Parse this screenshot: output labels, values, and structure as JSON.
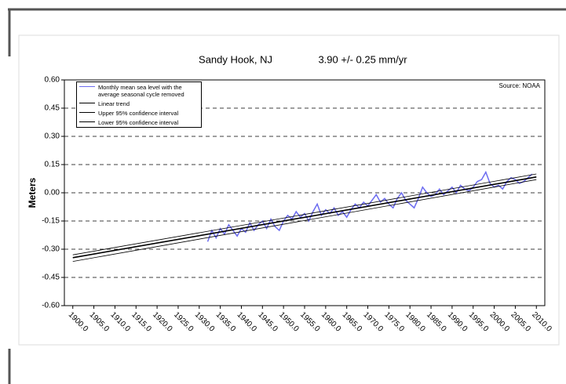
{
  "chart_data": {
    "type": "line",
    "title": "Sandy Hook, NJ",
    "subtitle": "3.90 +/- 0.25 mm/yr",
    "annotation": "Source: NOAA",
    "y_label": "Meters",
    "xlim": [
      1898,
      2012
    ],
    "ylim": [
      -0.6,
      0.6
    ],
    "xticks": [
      {
        "value": 1900,
        "label": "1900.0"
      },
      {
        "value": 1905,
        "label": "1905.0"
      },
      {
        "value": 1910,
        "label": "1910.0"
      },
      {
        "value": 1915,
        "label": "1915.0"
      },
      {
        "value": 1920,
        "label": "1920.0"
      },
      {
        "value": 1925,
        "label": "1925.0"
      },
      {
        "value": 1930,
        "label": "1930.0"
      },
      {
        "value": 1935,
        "label": "1935.0"
      },
      {
        "value": 1940,
        "label": "1940.0"
      },
      {
        "value": 1945,
        "label": "1945.0"
      },
      {
        "value": 1950,
        "label": "1950.0"
      },
      {
        "value": 1955,
        "label": "1955.0"
      },
      {
        "value": 1960,
        "label": "1960.0"
      },
      {
        "value": 1965,
        "label": "1965.0"
      },
      {
        "value": 1970,
        "label": "1970.0"
      },
      {
        "value": 1975,
        "label": "1975.0"
      },
      {
        "value": 1980,
        "label": "1980.0"
      },
      {
        "value": 1985,
        "label": "1985.0"
      },
      {
        "value": 1990,
        "label": "1990.0"
      },
      {
        "value": 1995,
        "label": "1995.0"
      },
      {
        "value": 2000,
        "label": "2000.0"
      },
      {
        "value": 2005,
        "label": "2005.0"
      },
      {
        "value": 2010,
        "label": "2010.0"
      }
    ],
    "yticks": [
      {
        "value": 0.6,
        "label": "0.60"
      },
      {
        "value": 0.45,
        "label": "0.45"
      },
      {
        "value": 0.3,
        "label": "0.30"
      },
      {
        "value": 0.15,
        "label": "0.15"
      },
      {
        "value": 0,
        "label": "0.00"
      },
      {
        "value": -0.15,
        "label": "-0.15"
      },
      {
        "value": -0.3,
        "label": "-0.30"
      },
      {
        "value": -0.45,
        "label": "-0.45"
      },
      {
        "value": -0.6,
        "label": "-0.60"
      }
    ],
    "grid": true,
    "legend": "top-left",
    "series": [
      {
        "name": "Monthly mean sea level with the average seasonal cycle removed",
        "color": "#6b6bf0",
        "width": 1.5,
        "x": [
          1932,
          1933,
          1934,
          1935,
          1936,
          1937,
          1938,
          1939,
          1940,
          1941,
          1942,
          1943,
          1944,
          1945,
          1946,
          1947,
          1948,
          1949,
          1950,
          1951,
          1952,
          1953,
          1954,
          1955,
          1956,
          1957,
          1958,
          1959,
          1960,
          1961,
          1962,
          1963,
          1964,
          1965,
          1966,
          1967,
          1968,
          1969,
          1970,
          1971,
          1972,
          1973,
          1974,
          1975,
          1976,
          1977,
          1978,
          1979,
          1980,
          1981,
          1982,
          1983,
          1984,
          1985,
          1986,
          1987,
          1988,
          1989,
          1990,
          1991,
          1992,
          1993,
          1994,
          1995,
          1996,
          1997,
          1998,
          1999,
          2000,
          2001,
          2002,
          2003,
          2004,
          2005,
          2006,
          2007,
          2008,
          2009
        ],
        "values": [
          -0.26,
          -0.2,
          -0.24,
          -0.19,
          -0.22,
          -0.17,
          -0.2,
          -0.23,
          -0.19,
          -0.21,
          -0.16,
          -0.2,
          -0.17,
          -0.15,
          -0.19,
          -0.14,
          -0.18,
          -0.2,
          -0.15,
          -0.12,
          -0.14,
          -0.1,
          -0.13,
          -0.11,
          -0.15,
          -0.1,
          -0.06,
          -0.12,
          -0.09,
          -0.11,
          -0.08,
          -0.12,
          -0.1,
          -0.13,
          -0.09,
          -0.06,
          -0.08,
          -0.05,
          -0.07,
          -0.04,
          -0.01,
          -0.05,
          -0.03,
          -0.06,
          -0.08,
          -0.03,
          0,
          -0.04,
          -0.06,
          -0.08,
          -0.03,
          0.03,
          0,
          -0.02,
          -0.01,
          0.02,
          -0.01,
          0.01,
          0.03,
          0,
          0.04,
          0.02,
          0.01,
          0.03,
          0.06,
          0.07,
          0.11,
          0.05,
          0.03,
          0.04,
          0.02,
          0.06,
          0.08,
          0.07,
          0.05,
          0.06,
          0.08,
          0.1
        ]
      },
      {
        "name": "Linear trend",
        "color": "#000000",
        "width": 1.6,
        "x": [
          1900,
          2010
        ],
        "values": [
          -0.345,
          0.084
        ]
      },
      {
        "name": "Upper 95% confidence interval",
        "color": "#000000",
        "width": 0.8,
        "x": [
          1900,
          2010
        ],
        "values": [
          -0.33,
          0.1
        ]
      },
      {
        "name": "Lower 95% confidence interval",
        "color": "#000000",
        "width": 0.8,
        "x": [
          1900,
          2010
        ],
        "values": [
          -0.365,
          0.07
        ]
      }
    ]
  }
}
